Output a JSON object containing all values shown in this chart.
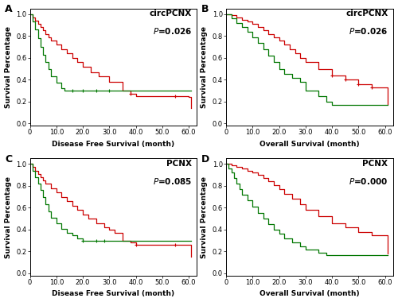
{
  "panels": [
    {
      "label": "A",
      "title": "circPCNX",
      "pvalue": "0.026",
      "xlabel": "Disease Free Survival (month)",
      "ylabel": "Survival Percentage",
      "xlim": [
        0,
        63
      ],
      "ylim": [
        -0.02,
        1.05
      ],
      "xticks": [
        0,
        10,
        20,
        30,
        40,
        50,
        60
      ],
      "yticks": [
        0.0,
        0.2,
        0.4,
        0.6,
        0.8,
        1.0
      ],
      "red_times": [
        0,
        1,
        2,
        3,
        4,
        5,
        6,
        7,
        8,
        10,
        12,
        14,
        16,
        18,
        20,
        23,
        26,
        30,
        35,
        38,
        40,
        55,
        60,
        61
      ],
      "red_surv": [
        1.0,
        0.97,
        0.94,
        0.91,
        0.88,
        0.85,
        0.82,
        0.79,
        0.76,
        0.72,
        0.68,
        0.64,
        0.6,
        0.56,
        0.52,
        0.47,
        0.43,
        0.38,
        0.3,
        0.27,
        0.25,
        0.25,
        0.24,
        0.14
      ],
      "red_censors_t": [
        38,
        55
      ],
      "red_censors_s": [
        0.27,
        0.25
      ],
      "green_times": [
        0,
        1,
        2,
        3,
        4,
        5,
        6,
        7,
        8,
        10,
        12,
        13,
        14,
        16,
        18,
        61
      ],
      "green_surv": [
        1.0,
        0.93,
        0.86,
        0.78,
        0.7,
        0.63,
        0.56,
        0.5,
        0.43,
        0.37,
        0.32,
        0.3,
        0.3,
        0.3,
        0.3,
        0.3
      ],
      "green_censors_t": [
        16,
        20,
        25,
        30
      ],
      "green_censors_s": [
        0.3,
        0.3,
        0.3,
        0.3
      ]
    },
    {
      "label": "B",
      "title": "circPCNX",
      "pvalue": "0.026",
      "xlabel": "Overall Survival (month)",
      "ylabel": "Survival Percentage",
      "xlim": [
        0,
        63
      ],
      "ylim": [
        -0.02,
        1.05
      ],
      "xticks": [
        0,
        10,
        20,
        30,
        40,
        50,
        60
      ],
      "yticks": [
        0.0,
        0.2,
        0.4,
        0.6,
        0.8,
        1.0
      ],
      "red_times": [
        0,
        2,
        4,
        6,
        8,
        10,
        12,
        14,
        16,
        18,
        20,
        22,
        24,
        26,
        28,
        30,
        35,
        40,
        45,
        50,
        55,
        60,
        61
      ],
      "red_surv": [
        1.0,
        0.99,
        0.97,
        0.95,
        0.93,
        0.91,
        0.88,
        0.85,
        0.82,
        0.79,
        0.76,
        0.72,
        0.68,
        0.64,
        0.6,
        0.56,
        0.5,
        0.44,
        0.4,
        0.36,
        0.33,
        0.33,
        0.18
      ],
      "red_censors_t": [
        40,
        45,
        50,
        55
      ],
      "red_censors_s": [
        0.44,
        0.4,
        0.36,
        0.33
      ],
      "green_times": [
        0,
        2,
        4,
        6,
        8,
        10,
        12,
        14,
        16,
        18,
        20,
        22,
        25,
        28,
        30,
        35,
        38,
        40,
        42,
        61
      ],
      "green_surv": [
        1.0,
        0.96,
        0.92,
        0.88,
        0.84,
        0.79,
        0.74,
        0.68,
        0.62,
        0.56,
        0.5,
        0.45,
        0.42,
        0.38,
        0.3,
        0.25,
        0.2,
        0.17,
        0.17,
        0.17
      ],
      "green_censors_t": [],
      "green_censors_s": []
    },
    {
      "label": "C",
      "title": "PCNX",
      "pvalue": "0.085",
      "xlabel": "Disease Free Survival (month)",
      "ylabel": "Survival Percentage",
      "xlim": [
        0,
        63
      ],
      "ylim": [
        -0.02,
        1.05
      ],
      "xticks": [
        0,
        10,
        20,
        30,
        40,
        50,
        60
      ],
      "yticks": [
        0.0,
        0.2,
        0.4,
        0.6,
        0.8,
        1.0
      ],
      "red_times": [
        0,
        1,
        2,
        3,
        4,
        5,
        6,
        8,
        10,
        12,
        14,
        16,
        18,
        20,
        22,
        25,
        28,
        30,
        32,
        35,
        38,
        40,
        55,
        60,
        61
      ],
      "red_surv": [
        1.0,
        0.97,
        0.94,
        0.91,
        0.88,
        0.85,
        0.82,
        0.78,
        0.74,
        0.7,
        0.66,
        0.62,
        0.58,
        0.54,
        0.5,
        0.46,
        0.42,
        0.4,
        0.37,
        0.3,
        0.28,
        0.26,
        0.26,
        0.26,
        0.15
      ],
      "red_censors_t": [
        40,
        55
      ],
      "red_censors_s": [
        0.26,
        0.26
      ],
      "green_times": [
        0,
        1,
        2,
        3,
        4,
        5,
        6,
        7,
        8,
        10,
        12,
        14,
        16,
        18,
        20,
        22,
        25,
        28,
        30,
        61
      ],
      "green_surv": [
        1.0,
        0.94,
        0.88,
        0.82,
        0.76,
        0.7,
        0.63,
        0.57,
        0.51,
        0.46,
        0.41,
        0.37,
        0.35,
        0.32,
        0.3,
        0.3,
        0.3,
        0.3,
        0.3,
        0.3
      ],
      "green_censors_t": [
        20,
        25,
        28
      ],
      "green_censors_s": [
        0.3,
        0.3,
        0.3
      ]
    },
    {
      "label": "D",
      "title": "PCNX",
      "pvalue": "0.000",
      "xlabel": "Overall Survival (month)",
      "ylabel": "Survival Percentage",
      "xlim": [
        0,
        63
      ],
      "ylim": [
        -0.02,
        1.05
      ],
      "xticks": [
        0,
        10,
        20,
        30,
        40,
        50,
        60
      ],
      "yticks": [
        0.0,
        0.2,
        0.4,
        0.6,
        0.8,
        1.0
      ],
      "red_times": [
        0,
        2,
        4,
        6,
        8,
        10,
        12,
        14,
        16,
        18,
        20,
        22,
        25,
        28,
        30,
        35,
        40,
        45,
        50,
        55,
        60,
        61
      ],
      "red_surv": [
        1.0,
        0.99,
        0.97,
        0.96,
        0.94,
        0.92,
        0.9,
        0.87,
        0.84,
        0.81,
        0.77,
        0.73,
        0.68,
        0.63,
        0.58,
        0.52,
        0.46,
        0.42,
        0.38,
        0.35,
        0.35,
        0.18
      ],
      "red_censors_t": [],
      "red_censors_s": [],
      "green_times": [
        0,
        1,
        2,
        3,
        4,
        5,
        6,
        8,
        10,
        12,
        14,
        16,
        18,
        20,
        22,
        25,
        28,
        30,
        35,
        38,
        40,
        42,
        61
      ],
      "green_surv": [
        1.0,
        0.96,
        0.92,
        0.87,
        0.82,
        0.77,
        0.72,
        0.67,
        0.61,
        0.55,
        0.5,
        0.45,
        0.4,
        0.36,
        0.32,
        0.28,
        0.25,
        0.22,
        0.19,
        0.17,
        0.17,
        0.17,
        0.17
      ],
      "green_censors_t": [],
      "green_censors_s": []
    }
  ],
  "red_color": "#cc0000",
  "green_color": "#007700",
  "bg_color": "#ffffff",
  "title_fontsize": 7.5,
  "label_fontsize": 6.5,
  "tick_fontsize": 6,
  "panel_label_fontsize": 9,
  "linewidth": 0.9
}
